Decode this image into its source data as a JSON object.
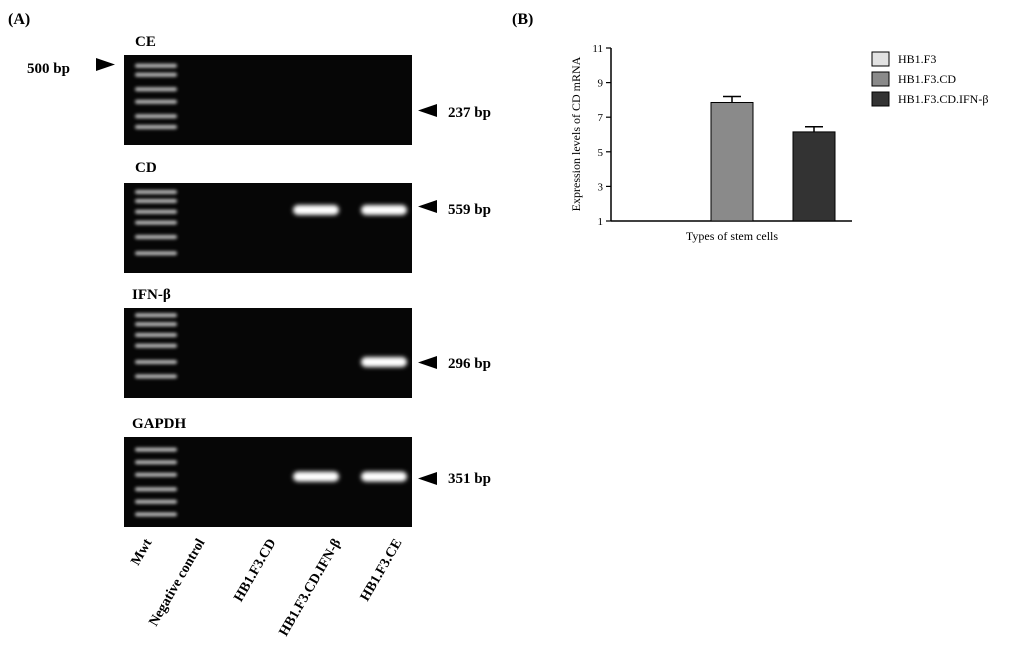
{
  "panel_a": {
    "label": "(A)",
    "marker_label": "500 bp",
    "gels": [
      {
        "title": "CE",
        "size_label": "237 bp",
        "bands": [
          0,
          0,
          0,
          1
        ]
      },
      {
        "title": "CD",
        "size_label": "559 bp",
        "bands": [
          0,
          1,
          1,
          0
        ]
      },
      {
        "title": "IFN-β",
        "size_label": "296 bp",
        "bands": [
          0,
          0,
          1,
          0
        ]
      },
      {
        "title": "GAPDH",
        "size_label": "351 bp",
        "bands": [
          0,
          1,
          1,
          1
        ]
      }
    ],
    "lanes": [
      "Mwt",
      "Negative control",
      "HB1.F3.CD",
      "HB1.F3.CD.IFN-β",
      "HB1.F3.CE"
    ]
  },
  "panel_b": {
    "label": "(B)"
  },
  "colors": {
    "gel_background": "#060606",
    "band": "#ffffff",
    "series": [
      "#e2e2e2",
      "#8a8a8a",
      "#333333"
    ]
  },
  "chart_data": {
    "type": "bar",
    "title": "",
    "xlabel": "Types of stem cells",
    "ylabel": "Expression levels of CD mRNA",
    "ylim": [
      1,
      11
    ],
    "yticks": [
      1,
      3,
      5,
      7,
      9,
      11
    ],
    "categories": [
      ""
    ],
    "series": [
      {
        "name": "HB1.F3",
        "values": [
          1.0
        ],
        "error": [
          0.0
        ]
      },
      {
        "name": "HB1.F3.CD",
        "values": [
          7.85
        ],
        "error": [
          0.35
        ]
      },
      {
        "name": "HB1.F3.CD.IFN-β",
        "values": [
          6.15
        ],
        "error": [
          0.3
        ]
      }
    ],
    "legend": "top-right",
    "grid": false
  }
}
